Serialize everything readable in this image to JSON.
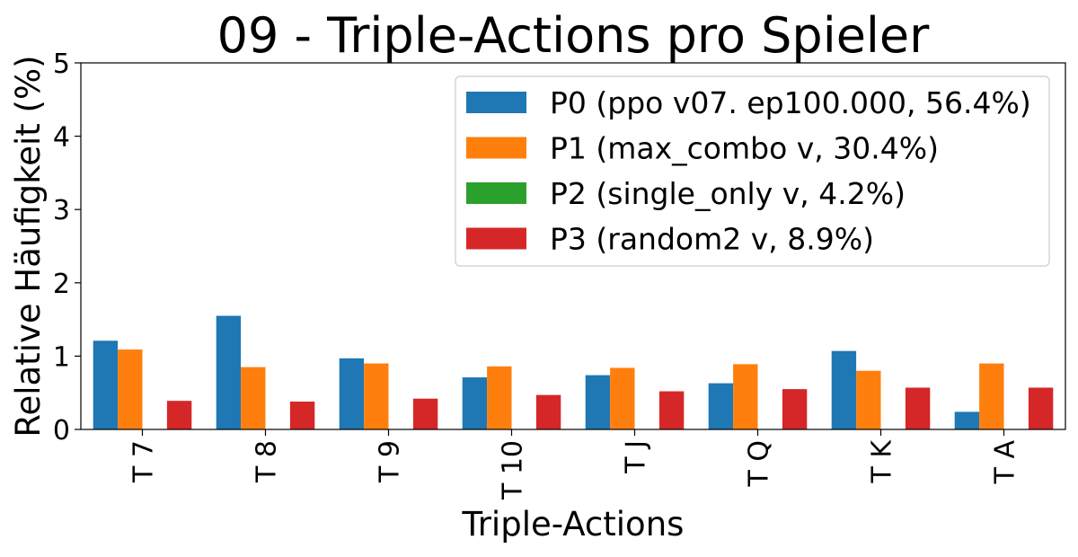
{
  "chart_data": {
    "type": "bar",
    "title": "09 - Triple-Actions pro Spieler",
    "xlabel": "Triple-Actions",
    "ylabel": "Relative Häufigkeit (%)",
    "ylim": [
      0,
      5
    ],
    "yticks": [
      "0",
      "1",
      "2",
      "3",
      "4",
      "5"
    ],
    "grid": false,
    "legend_position": "top-right",
    "categories": [
      "T 7",
      "T 8",
      "T 9",
      "T 10",
      "T J",
      "T Q",
      "T K",
      "T A"
    ],
    "series": [
      {
        "name": "P0 (ppo v07. ep100.000, 56.4%)",
        "color": "#1f77b4",
        "values": [
          1.21,
          1.55,
          0.97,
          0.71,
          0.74,
          0.63,
          1.07,
          0.24
        ]
      },
      {
        "name": "P1 (max_combo v, 30.4%)",
        "color": "#ff7f0e",
        "values": [
          1.09,
          0.85,
          0.9,
          0.86,
          0.84,
          0.89,
          0.8,
          0.9
        ]
      },
      {
        "name": "P2 (single_only v, 4.2%)",
        "color": "#2ca02c",
        "values": [
          0,
          0,
          0,
          0,
          0,
          0,
          0,
          0
        ]
      },
      {
        "name": "P3 (random2 v, 8.9%)",
        "color": "#d62728",
        "values": [
          0.39,
          0.38,
          0.42,
          0.47,
          0.52,
          0.55,
          0.57,
          0.57
        ]
      }
    ]
  }
}
